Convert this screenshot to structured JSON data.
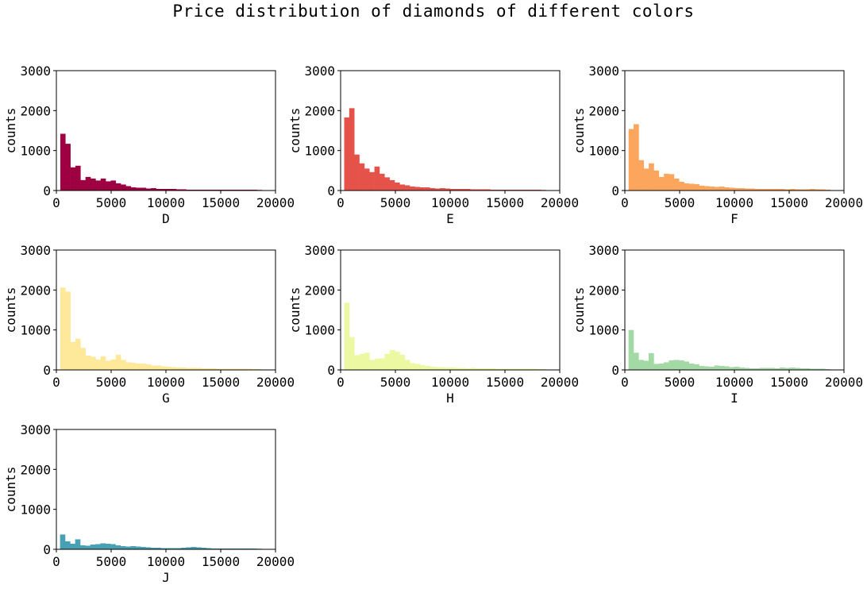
{
  "suptitle": "Price distribution of diamonds of different colors",
  "chart_data": [
    {
      "type": "bar",
      "subtype": "histogram",
      "xlabel": "D",
      "ylabel": "counts",
      "xlim": [
        0,
        20000
      ],
      "ylim": [
        0,
        3000
      ],
      "xticks": [
        0,
        5000,
        10000,
        15000,
        20000
      ],
      "yticks": [
        0,
        1000,
        2000,
        3000
      ],
      "bin_start": 357,
      "bin_width": 460,
      "color": "#9e0142",
      "values": [
        1420,
        1170,
        580,
        620,
        260,
        340,
        300,
        250,
        300,
        230,
        250,
        180,
        150,
        110,
        80,
        70,
        70,
        50,
        60,
        40,
        40,
        40,
        40,
        30,
        30,
        20,
        20,
        20,
        20,
        20,
        20,
        20,
        20,
        20,
        20,
        20,
        20,
        20,
        20,
        15
      ]
    },
    {
      "type": "bar",
      "subtype": "histogram",
      "xlabel": "E",
      "ylabel": "counts",
      "xlim": [
        0,
        20000
      ],
      "ylim": [
        0,
        3000
      ],
      "xticks": [
        0,
        5000,
        10000,
        15000,
        20000
      ],
      "yticks": [
        0,
        1000,
        2000,
        3000
      ],
      "bin_start": 326,
      "bin_width": 460,
      "color": "#e5524a",
      "values": [
        1830,
        2060,
        900,
        680,
        550,
        460,
        600,
        420,
        330,
        260,
        200,
        150,
        130,
        100,
        90,
        80,
        80,
        60,
        50,
        60,
        50,
        40,
        40,
        40,
        40,
        30,
        30,
        30,
        30,
        20,
        20,
        20,
        20,
        20,
        20,
        20,
        20,
        20,
        20,
        15
      ]
    },
    {
      "type": "bar",
      "subtype": "histogram",
      "xlabel": "F",
      "ylabel": "counts",
      "xlim": [
        0,
        20000
      ],
      "ylim": [
        0,
        3000
      ],
      "xticks": [
        0,
        5000,
        10000,
        15000,
        20000
      ],
      "yticks": [
        0,
        1000,
        2000,
        3000
      ],
      "bin_start": 342,
      "bin_width": 460,
      "color": "#fca55d",
      "values": [
        1540,
        1660,
        760,
        550,
        680,
        500,
        340,
        420,
        410,
        300,
        220,
        180,
        170,
        160,
        120,
        110,
        100,
        90,
        100,
        80,
        70,
        60,
        60,
        50,
        50,
        40,
        40,
        40,
        40,
        40,
        40,
        30,
        40,
        30,
        30,
        30,
        40,
        30,
        30,
        20
      ]
    },
    {
      "type": "bar",
      "subtype": "histogram",
      "xlabel": "G",
      "ylabel": "counts",
      "xlim": [
        0,
        20000
      ],
      "ylim": [
        0,
        3000
      ],
      "xticks": [
        0,
        5000,
        10000,
        15000,
        20000
      ],
      "yticks": [
        0,
        1000,
        2000,
        3000
      ],
      "bin_start": 354,
      "bin_width": 460,
      "color": "#fee899",
      "values": [
        2060,
        1960,
        700,
        780,
        550,
        360,
        330,
        260,
        340,
        230,
        260,
        380,
        250,
        190,
        180,
        160,
        160,
        140,
        110,
        110,
        90,
        80,
        70,
        60,
        60,
        50,
        50,
        50,
        40,
        40,
        40,
        30,
        30,
        30,
        30,
        30,
        30,
        30,
        20,
        20
      ]
    },
    {
      "type": "bar",
      "subtype": "histogram",
      "xlabel": "H",
      "ylabel": "counts",
      "xlim": [
        0,
        20000
      ],
      "ylim": [
        0,
        3000
      ],
      "xticks": [
        0,
        5000,
        10000,
        15000,
        20000
      ],
      "yticks": [
        0,
        1000,
        2000,
        3000
      ],
      "bin_start": 337,
      "bin_width": 460,
      "color": "#edf8a3",
      "values": [
        1680,
        820,
        370,
        400,
        430,
        250,
        280,
        290,
        400,
        500,
        460,
        380,
        250,
        170,
        150,
        120,
        100,
        80,
        70,
        70,
        60,
        60,
        50,
        50,
        40,
        50,
        40,
        40,
        40,
        40,
        30,
        30,
        30,
        30,
        30,
        30,
        30,
        30,
        20,
        20
      ]
    },
    {
      "type": "bar",
      "subtype": "histogram",
      "xlabel": "I",
      "ylabel": "counts",
      "xlim": [
        0,
        20000
      ],
      "ylim": [
        0,
        3000
      ],
      "xticks": [
        0,
        5000,
        10000,
        15000,
        20000
      ],
      "yticks": [
        0,
        1000,
        2000,
        3000
      ],
      "bin_start": 334,
      "bin_width": 460,
      "color": "#a2d9a4",
      "values": [
        1000,
        430,
        250,
        230,
        420,
        150,
        160,
        190,
        240,
        250,
        240,
        210,
        160,
        140,
        100,
        90,
        80,
        110,
        100,
        90,
        70,
        80,
        60,
        50,
        40,
        40,
        50,
        50,
        50,
        40,
        60,
        50,
        60,
        50,
        40,
        40,
        30,
        30,
        30,
        20
      ]
    },
    {
      "type": "bar",
      "subtype": "histogram",
      "xlabel": "J",
      "ylabel": "counts",
      "xlim": [
        0,
        20000
      ],
      "ylim": [
        0,
        3000
      ],
      "xticks": [
        0,
        5000,
        10000,
        15000,
        20000
      ],
      "yticks": [
        0,
        1000,
        2000,
        3000
      ],
      "bin_start": 335,
      "bin_width": 460,
      "color": "#47a0b3",
      "values": [
        370,
        200,
        140,
        250,
        100,
        90,
        120,
        130,
        150,
        140,
        130,
        100,
        80,
        70,
        80,
        70,
        60,
        50,
        40,
        40,
        30,
        30,
        30,
        30,
        40,
        50,
        60,
        50,
        40,
        30,
        20,
        20,
        20,
        20,
        20,
        20,
        20,
        20,
        20,
        15
      ]
    }
  ]
}
